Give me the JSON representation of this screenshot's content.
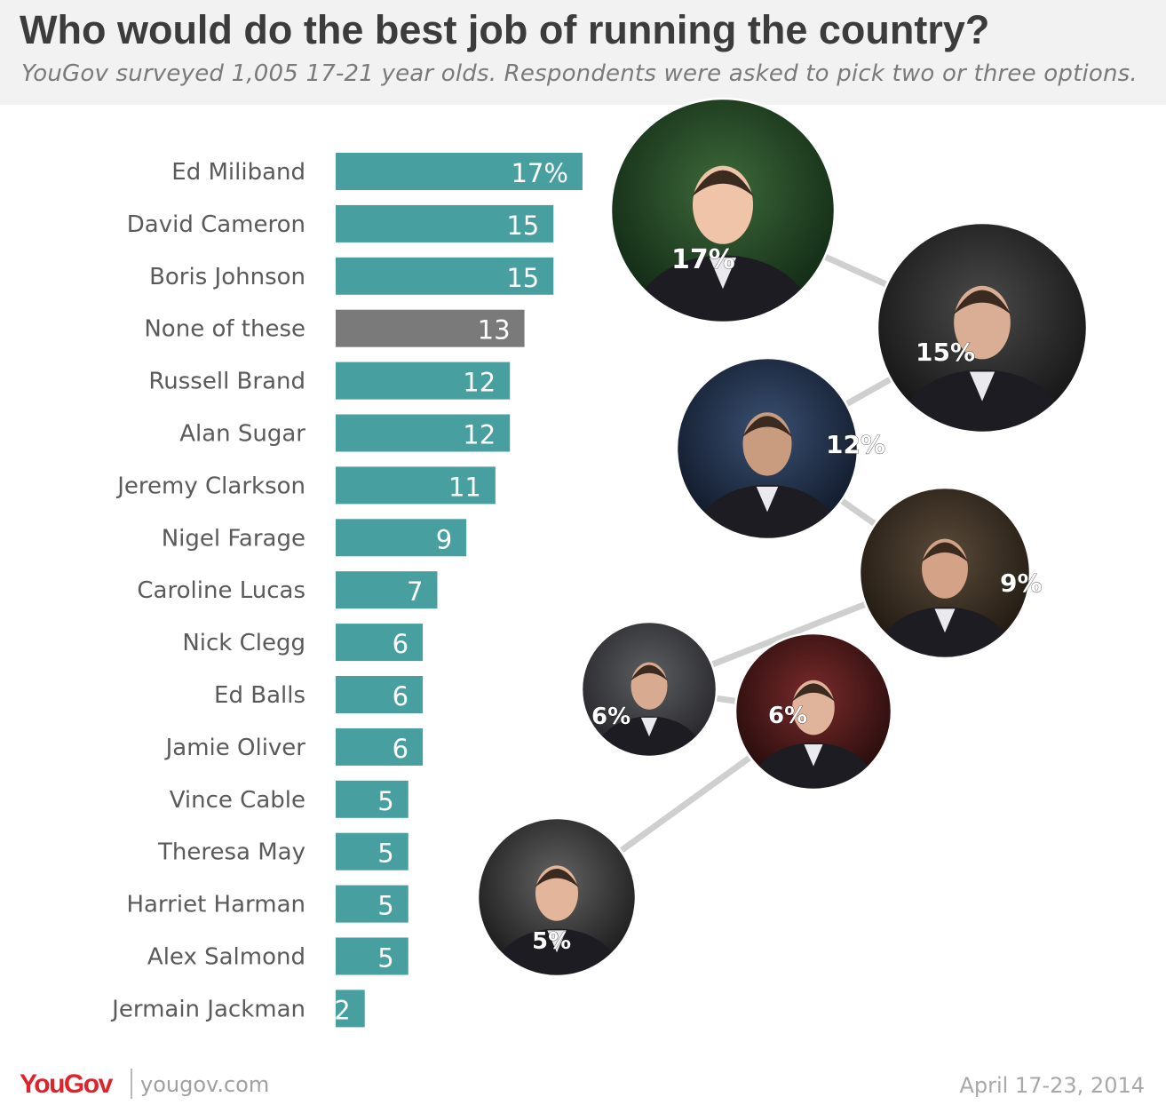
{
  "header": {
    "title": "Who would do the best job of running the country?",
    "subtitle": "YouGov surveyed 1,005 17-21 year olds. Respondents were asked to pick two or three options."
  },
  "footer": {
    "logo": "YouGov",
    "site": "yougov.com",
    "date": "April 17-23, 2014"
  },
  "colors": {
    "bar": "#479f9f",
    "bar_none": "#7a7a7a",
    "label": "#5a5a5a",
    "connector": "#cfcfcf"
  },
  "chart_data": {
    "type": "bar",
    "orientation": "horizontal",
    "categories": [
      "Ed Miliband",
      "David Cameron",
      "Boris Johnson",
      "None of these",
      "Russell Brand",
      "Alan Sugar",
      "Jeremy Clarkson",
      "Nigel Farage",
      "Caroline Lucas",
      "Nick Clegg",
      "Ed Balls",
      "Jamie Oliver",
      "Vince Cable",
      "Theresa May",
      "Harriet Harman",
      "Alex Salmond",
      "Jermain Jackman"
    ],
    "values": [
      17,
      15,
      15,
      13,
      12,
      12,
      11,
      9,
      7,
      6,
      6,
      6,
      5,
      5,
      5,
      5,
      2
    ],
    "value_labels": [
      "17%",
      "15",
      "15",
      "13",
      "12",
      "12",
      "11",
      "9",
      "7",
      "6",
      "6",
      "6",
      "5",
      "5",
      "5",
      "5",
      "2"
    ],
    "highlight": [
      {
        "category": "None of these",
        "color": "#7a7a7a"
      }
    ],
    "unit": "%",
    "grid": false,
    "portraits": [
      {
        "person": "Ed Miliband",
        "label": "17%"
      },
      {
        "person": "David Cameron",
        "label": "15%"
      },
      {
        "person": "Russell Brand",
        "label": "12%"
      },
      {
        "person": "Nigel Farage",
        "label": "9%"
      },
      {
        "person": "Nick Clegg",
        "label": "6%"
      },
      {
        "person": "Jamie Oliver",
        "label": "6%"
      },
      {
        "person": "Alex Salmond",
        "label": "5%"
      }
    ]
  }
}
